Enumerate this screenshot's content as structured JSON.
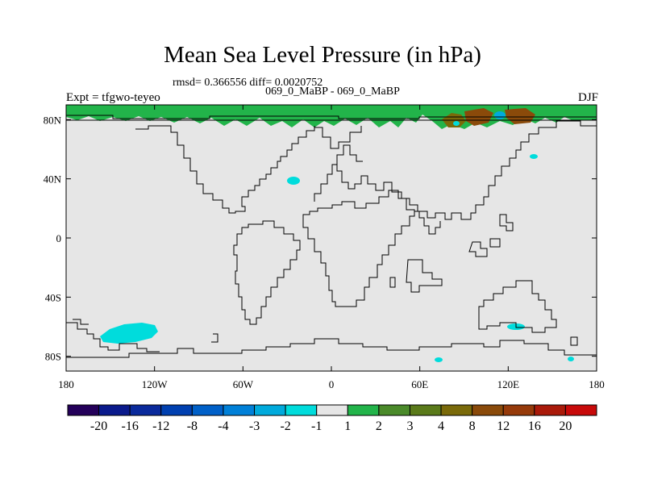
{
  "title": "Mean Sea Level Pressure (in hPa)",
  "stats": "rmsd= 0.366556  diff= 0.0020752",
  "subtitle": "069_0_MaBP - 069_0_MaBP",
  "experiment": "Expt = tfgwo-teyeo",
  "season": "DJF",
  "colors": {
    "background_land_ocean": "#e6e6e6",
    "coastline": "#000000"
  },
  "chart_data": {
    "type": "heatmap",
    "projection": "cylindrical-equidistant",
    "lon_range": [
      -180,
      180
    ],
    "lat_range": [
      -90,
      90
    ],
    "x_ticks": [
      {
        "value": -180,
        "label": "180"
      },
      {
        "value": -120,
        "label": "120W"
      },
      {
        "value": -60,
        "label": "60W"
      },
      {
        "value": 0,
        "label": "0"
      },
      {
        "value": 60,
        "label": "60E"
      },
      {
        "value": 120,
        "label": "120E"
      },
      {
        "value": 180,
        "label": "180"
      }
    ],
    "y_ticks": [
      {
        "value": 80,
        "label": "80N"
      },
      {
        "value": 40,
        "label": "40N"
      },
      {
        "value": 0,
        "label": "0"
      },
      {
        "value": -40,
        "label": "40S"
      },
      {
        "value": -80,
        "label": "80S"
      }
    ],
    "colorbar": {
      "colors": [
        "#24005a",
        "#0a1a8c",
        "#0a2a9c",
        "#0040b0",
        "#0060c8",
        "#0080d8",
        "#00aadc",
        "#00dcdc",
        "#e6e6e6",
        "#22b44a",
        "#4a8a2a",
        "#5a7a1a",
        "#7a6a0a",
        "#8a4a0a",
        "#963a0a",
        "#aa1a0a",
        "#c80a0a"
      ],
      "labels": [
        "-20",
        "-16",
        "-12",
        "-8",
        "-4",
        "-3",
        "-2",
        "-1",
        "1",
        "2",
        "3",
        "4",
        "8",
        "12",
        "16",
        "20"
      ]
    },
    "anomalies": [
      {
        "lon": -143,
        "lat": -63,
        "class": "-1",
        "color": "#00dcdc"
      },
      {
        "lon": -22,
        "lat": 38,
        "class": "-1",
        "color": "#00dcdc"
      },
      {
        "lon": 138,
        "lat": 56,
        "class": "-1",
        "color": "#00dcdc"
      },
      {
        "lon": 122,
        "lat": -60,
        "class": "-1",
        "color": "#00dcdc"
      },
      {
        "lon": 74,
        "lat": -82,
        "class": "-1",
        "color": "#00dcdc"
      },
      {
        "lon": 164,
        "lat": -82,
        "class": "-1",
        "color": "#00dcdc"
      },
      {
        "lon": 114,
        "lat": 84,
        "class": "-2",
        "color": "#00aadc"
      },
      {
        "lon": 100,
        "lat": 83,
        "class": "8",
        "color": "#7a6a0a"
      },
      {
        "lon": 80,
        "lat": 81,
        "class": "8",
        "color": "#7a6a0a"
      },
      {
        "lon": 128,
        "lat": 83,
        "class": "12",
        "color": "#8a4a0a"
      }
    ]
  }
}
